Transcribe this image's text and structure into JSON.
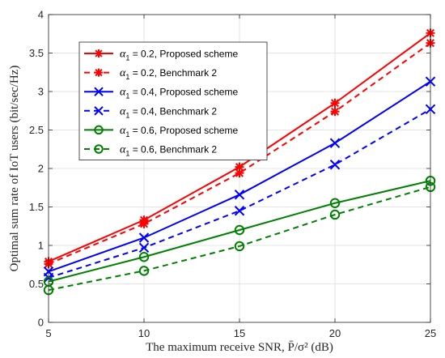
{
  "chart_data": {
    "type": "line",
    "title": "",
    "xlabel": "The maximum receive SNR, P̄/σ² (dB)",
    "ylabel": "Optimal sum rate of IoT users (bit/sec/Hz)",
    "xlim": [
      5,
      25
    ],
    "ylim": [
      0,
      4
    ],
    "x": [
      5,
      10,
      15,
      20,
      25
    ],
    "x_ticks": [
      "5",
      "10",
      "15",
      "20",
      "25"
    ],
    "y_ticks": [
      "0",
      "0.5",
      "1",
      "1.5",
      "2",
      "2.5",
      "3",
      "3.5",
      "4"
    ],
    "grid": true,
    "legend_position": "top-left",
    "series": [
      {
        "name": "α₁ = 0.2, Proposed scheme",
        "alpha": "α",
        "sub": "1",
        "rest": " = 0.2, Proposed scheme",
        "color": "#ff0000",
        "dash": "solid",
        "marker": "asterisk",
        "values": [
          0.79,
          1.33,
          2.02,
          2.85,
          3.76
        ]
      },
      {
        "name": "α₁ = 0.2, Benchmark 2",
        "alpha": "α",
        "sub": "1",
        "rest": " = 0.2, Benchmark 2",
        "color": "#ff0000",
        "dash": "dashed",
        "marker": "asterisk",
        "values": [
          0.76,
          1.28,
          1.94,
          2.74,
          3.63
        ]
      },
      {
        "name": "α₁ = 0.4, Proposed scheme",
        "alpha": "α",
        "sub": "1",
        "rest": " = 0.4, Proposed scheme",
        "color": "#0000ff",
        "dash": "solid",
        "marker": "x",
        "values": [
          0.66,
          1.1,
          1.66,
          2.33,
          3.13
        ]
      },
      {
        "name": "α₁ = 0.4, Benchmark 2",
        "alpha": "α",
        "sub": "1",
        "rest": " = 0.4, Benchmark 2",
        "color": "#0000ff",
        "dash": "dashed",
        "marker": "x",
        "values": [
          0.58,
          0.97,
          1.45,
          2.05,
          2.77
        ]
      },
      {
        "name": "α₁ = 0.6, Proposed scheme",
        "alpha": "α",
        "sub": "1",
        "rest": " = 0.6, Proposed scheme",
        "color": "#008000",
        "dash": "solid",
        "marker": "circle",
        "values": [
          0.53,
          0.85,
          1.2,
          1.55,
          1.84
        ]
      },
      {
        "name": "α₁ = 0.6, Benchmark 2",
        "alpha": "α",
        "sub": "1",
        "rest": " = 0.6, Benchmark 2",
        "color": "#008000",
        "dash": "dashed",
        "marker": "circle",
        "values": [
          0.42,
          0.67,
          0.99,
          1.4,
          1.76
        ]
      }
    ]
  }
}
